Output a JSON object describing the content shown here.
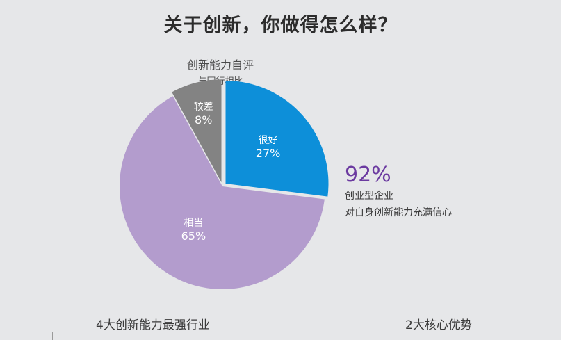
{
  "title": "关于创新，你做得怎么样？",
  "chart_data": {
    "type": "pie",
    "title": "创新能力自评",
    "subtitle": "与同行相比",
    "slices": [
      {
        "label": "很好",
        "value": 27,
        "display": "27%",
        "color": "#0d8fd9",
        "exploded": true
      },
      {
        "label": "相当",
        "value": 65,
        "display": "65%",
        "color": "#b39ccd",
        "exploded": false
      },
      {
        "label": "较差",
        "value": 8,
        "display": "8%",
        "color": "#838383",
        "exploded": true
      }
    ]
  },
  "callout": {
    "percent": "92%",
    "line1": "创业型企业",
    "line2": "对自身创新能力充满信心",
    "color": "#6b3aa0"
  },
  "footer": {
    "left": "4大创新能力最强行业",
    "right": "2大核心优势"
  }
}
